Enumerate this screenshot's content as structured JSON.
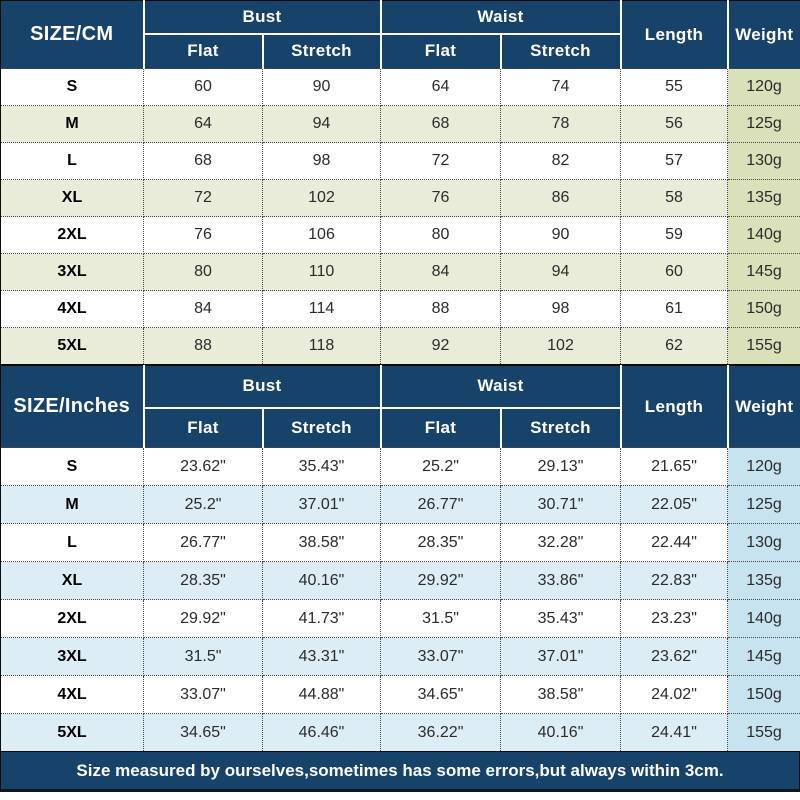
{
  "colors": {
    "header_navy": "#17426a",
    "cm_row_tint": "#e9ecd8",
    "cm_weight_bg": "#d9e0ba",
    "inches_row_tint": "#dcedf6",
    "inches_weight_bg": "#c8e3f0",
    "border_black": "#0a0a0a",
    "header_text": "#ffffff"
  },
  "chart_data": [
    {
      "type": "table",
      "unit": "cm",
      "corner_label": "SIZE/CM",
      "bust_label": "Bust",
      "waist_label": "Waist",
      "flat_label": "Flat",
      "stretch_label": "Stretch",
      "length_label": "Length",
      "weight_label": "Weight",
      "rows": [
        {
          "size": "S",
          "bust_flat": "60",
          "bust_stretch": "90",
          "waist_flat": "64",
          "waist_stretch": "74",
          "length": "55",
          "weight": "120g"
        },
        {
          "size": "M",
          "bust_flat": "64",
          "bust_stretch": "94",
          "waist_flat": "68",
          "waist_stretch": "78",
          "length": "56",
          "weight": "125g"
        },
        {
          "size": "L",
          "bust_flat": "68",
          "bust_stretch": "98",
          "waist_flat": "72",
          "waist_stretch": "82",
          "length": "57",
          "weight": "130g"
        },
        {
          "size": "XL",
          "bust_flat": "72",
          "bust_stretch": "102",
          "waist_flat": "76",
          "waist_stretch": "86",
          "length": "58",
          "weight": "135g"
        },
        {
          "size": "2XL",
          "bust_flat": "76",
          "bust_stretch": "106",
          "waist_flat": "80",
          "waist_stretch": "90",
          "length": "59",
          "weight": "140g"
        },
        {
          "size": "3XL",
          "bust_flat": "80",
          "bust_stretch": "110",
          "waist_flat": "84",
          "waist_stretch": "94",
          "length": "60",
          "weight": "145g"
        },
        {
          "size": "4XL",
          "bust_flat": "84",
          "bust_stretch": "114",
          "waist_flat": "88",
          "waist_stretch": "98",
          "length": "61",
          "weight": "150g"
        },
        {
          "size": "5XL",
          "bust_flat": "88",
          "bust_stretch": "118",
          "waist_flat": "92",
          "waist_stretch": "102",
          "length": "62",
          "weight": "155g"
        }
      ]
    },
    {
      "type": "table",
      "unit": "inches",
      "corner_label": "SIZE/Inches",
      "bust_label": "Bust",
      "waist_label": "Waist",
      "flat_label": "Flat",
      "stretch_label": "Stretch",
      "length_label": "Length",
      "weight_label": "Weight",
      "rows": [
        {
          "size": "S",
          "bust_flat": "23.62\"",
          "bust_stretch": "35.43\"",
          "waist_flat": "25.2\"",
          "waist_stretch": "29.13\"",
          "length": "21.65\"",
          "weight": "120g"
        },
        {
          "size": "M",
          "bust_flat": "25.2\"",
          "bust_stretch": "37.01\"",
          "waist_flat": "26.77\"",
          "waist_stretch": "30.71\"",
          "length": "22.05\"",
          "weight": "125g"
        },
        {
          "size": "L",
          "bust_flat": "26.77\"",
          "bust_stretch": "38.58\"",
          "waist_flat": "28.35\"",
          "waist_stretch": "32.28\"",
          "length": "22.44\"",
          "weight": "130g"
        },
        {
          "size": "XL",
          "bust_flat": "28.35\"",
          "bust_stretch": "40.16\"",
          "waist_flat": "29.92\"",
          "waist_stretch": "33.86\"",
          "length": "22.83\"",
          "weight": "135g"
        },
        {
          "size": "2XL",
          "bust_flat": "29.92\"",
          "bust_stretch": "41.73\"",
          "waist_flat": "31.5\"",
          "waist_stretch": "35.43\"",
          "length": "23.23\"",
          "weight": "140g"
        },
        {
          "size": "3XL",
          "bust_flat": "31.5\"",
          "bust_stretch": "43.31\"",
          "waist_flat": "33.07\"",
          "waist_stretch": "37.01\"",
          "length": "23.62\"",
          "weight": "145g"
        },
        {
          "size": "4XL",
          "bust_flat": "33.07\"",
          "bust_stretch": "44.88\"",
          "waist_flat": "34.65\"",
          "waist_stretch": "38.58\"",
          "length": "24.02\"",
          "weight": "150g"
        },
        {
          "size": "5XL",
          "bust_flat": "34.65\"",
          "bust_stretch": "46.46\"",
          "waist_flat": "36.22\"",
          "waist_stretch": "40.16\"",
          "length": "24.41\"",
          "weight": "155g"
        }
      ]
    }
  ],
  "footer": {
    "note": "Size measured by ourselves,sometimes has some errors,but always within 3cm."
  }
}
